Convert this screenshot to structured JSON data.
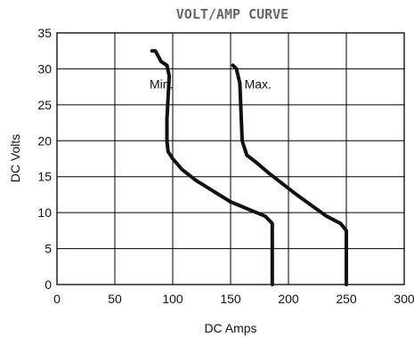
{
  "chart_data": {
    "type": "line",
    "title": "VOLT/AMP CURVE",
    "xlabel": "DC Amps",
    "ylabel": "DC Volts",
    "xlim": [
      0,
      300
    ],
    "ylim": [
      0,
      35
    ],
    "x_ticks": [
      0,
      50,
      100,
      150,
      200,
      250,
      300
    ],
    "y_ticks": [
      0,
      5,
      10,
      15,
      20,
      25,
      30,
      35
    ],
    "grid": true,
    "series": [
      {
        "name": "Min.",
        "points": [
          [
            186,
            0
          ],
          [
            186,
            8.5
          ],
          [
            180,
            9.5
          ],
          [
            165,
            10.5
          ],
          [
            150,
            11.5
          ],
          [
            135,
            13
          ],
          [
            120,
            14.5
          ],
          [
            108,
            16
          ],
          [
            100,
            17.5
          ],
          [
            96,
            18.5
          ],
          [
            95,
            20
          ],
          [
            95,
            23
          ],
          [
            96,
            26
          ],
          [
            97,
            29
          ],
          [
            95,
            30.5
          ],
          [
            90,
            31
          ],
          [
            85,
            32.5
          ],
          [
            82,
            32.5
          ]
        ]
      },
      {
        "name": "Max.",
        "points": [
          [
            250,
            0
          ],
          [
            250,
            7.5
          ],
          [
            245,
            8.5
          ],
          [
            233,
            9.5
          ],
          [
            220,
            11
          ],
          [
            207,
            12.5
          ],
          [
            195,
            14
          ],
          [
            183,
            15.5
          ],
          [
            172,
            17
          ],
          [
            164,
            18
          ],
          [
            160,
            20
          ],
          [
            159,
            24
          ],
          [
            158,
            28
          ],
          [
            155,
            30
          ],
          [
            152,
            30.5
          ]
        ]
      }
    ],
    "annotations": [
      {
        "text": "Min.",
        "x": 80,
        "y": 27.3
      },
      {
        "text": "Max.",
        "x": 162,
        "y": 27.3
      }
    ]
  }
}
